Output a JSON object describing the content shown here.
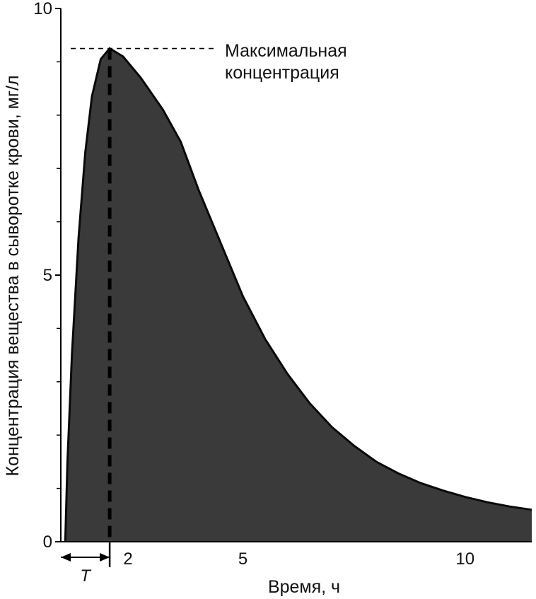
{
  "chart_data": {
    "type": "area",
    "title": "",
    "xlabel": "Время, ч",
    "ylabel": "Концентрация вещества в сыворотке крови, мг/л",
    "xlim": [
      0.9,
      11.5
    ],
    "ylim": [
      0,
      10
    ],
    "x_ticks": [
      2,
      5,
      10
    ],
    "y_ticks": [
      0,
      5,
      10
    ],
    "x_tick_labels": [
      "2",
      "5",
      "10"
    ],
    "y_tick_labels": [
      "0",
      "5",
      "10"
    ],
    "y_minor_ticks": [
      1,
      2,
      3,
      4,
      6,
      7,
      8,
      9
    ],
    "grid": false,
    "fill_color": "#3a3a3a",
    "series": [
      {
        "x": [
          1.0,
          1.05,
          1.15,
          1.3,
          1.45,
          1.6,
          1.8,
          2.0,
          2.3,
          2.7,
          3.2,
          3.6,
          4.0,
          4.5,
          5.0,
          5.5,
          6.0,
          6.5,
          7.0,
          7.5,
          8.0,
          8.5,
          9.0,
          9.5,
          10.0,
          10.5,
          11.0,
          11.5
        ],
        "y": [
          0.0,
          1.5,
          3.5,
          5.7,
          7.3,
          8.35,
          9.05,
          9.25,
          9.1,
          8.7,
          8.1,
          7.5,
          6.6,
          5.6,
          4.6,
          3.8,
          3.15,
          2.6,
          2.15,
          1.8,
          1.5,
          1.28,
          1.1,
          0.96,
          0.84,
          0.74,
          0.66,
          0.6
        ]
      }
    ],
    "annotations": {
      "peak_label": "Максимальная концентрация",
      "peak_label_line1": "Максимальная",
      "peak_label_line2": "концентрация",
      "peak_value": 9.25,
      "peak_time": 2.0,
      "lag_label": "T",
      "lag_start": 0.9,
      "lag_end": 2.0
    }
  }
}
